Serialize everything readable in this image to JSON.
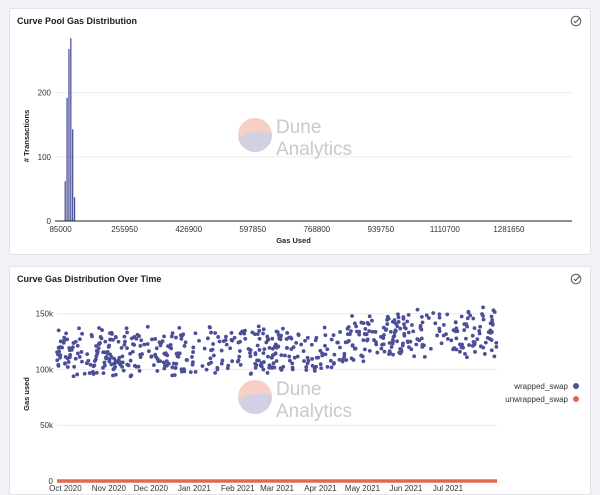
{
  "chart_data": [
    {
      "type": "bar",
      "title": "Curve Pool Gas Distribution",
      "xlabel": "Gas Used",
      "ylabel": "# Transactions",
      "x_ticks": [
        85000,
        255950,
        426900,
        597850,
        768800,
        939750,
        1110700,
        1281650
      ],
      "x_tick_labels": [
        "85000",
        "255950",
        "426900",
        "597850",
        "768800",
        "939750",
        "1110700",
        "1281650"
      ],
      "y_ticks": [
        0,
        100,
        200
      ],
      "xlim": [
        70000,
        1450000
      ],
      "ylim": [
        0,
        290
      ],
      "bins": [
        {
          "x": 98000,
          "value": 62
        },
        {
          "x": 103000,
          "value": 192
        },
        {
          "x": 108000,
          "value": 268
        },
        {
          "x": 113000,
          "value": 285
        },
        {
          "x": 118000,
          "value": 143
        },
        {
          "x": 123000,
          "value": 37
        }
      ],
      "bin_width": 5000,
      "color": "#4b4f97",
      "grid": true
    },
    {
      "type": "scatter",
      "title": "Curve Gas Distribution Over Time",
      "ylabel": "Gas used",
      "xlabel": "",
      "x_tick_labels": [
        "Oct 2020",
        "Nov 2020",
        "Dec 2020",
        "Jan 2021",
        "Feb 2021",
        "Mar 2021",
        "Apr 2021",
        "May 2021",
        "Jun 2021",
        "Jul 2021"
      ],
      "y_ticks": [
        0,
        50000,
        100000,
        150000
      ],
      "y_tick_labels": [
        "0",
        "50k",
        "100k",
        "150k"
      ],
      "ylim": [
        0,
        165000
      ],
      "xlim": [
        "2020-09-25",
        "2021-08-05"
      ],
      "grid": true,
      "legend_position": "right",
      "series": [
        {
          "name": "wrapped_swap",
          "color": "#4b4f97",
          "trend": [
            {
              "date": "2020-09-25",
              "min": 92000,
              "max": 140000
            },
            {
              "date": "2021-04-10",
              "min": 92000,
              "max": 142000
            },
            {
              "date": "2021-04-25",
              "min": 105000,
              "max": 152000
            },
            {
              "date": "2021-08-05",
              "min": 108000,
              "max": 162000
            }
          ]
        },
        {
          "name": "unwrapped_swap",
          "color": "#e4694a",
          "value": 0
        }
      ]
    }
  ],
  "watermark": {
    "line1": "Dune",
    "line2": "Analytics"
  },
  "icons": {
    "check": "check-circle-icon"
  }
}
